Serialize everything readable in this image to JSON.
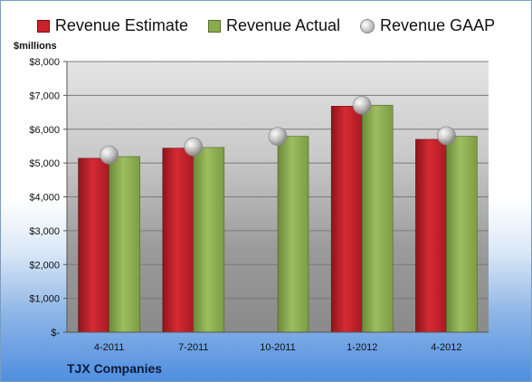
{
  "legend": {
    "estimate": "Revenue Estimate",
    "actual": "Revenue Actual",
    "gaap": "Revenue GAAP"
  },
  "unit_label": "$millions",
  "company": "TJX Companies",
  "colors": {
    "estimate": "#c8232b",
    "actual": "#8aac4e",
    "gaap": "#c0c0c0"
  },
  "chart_data": {
    "type": "bar",
    "title": "",
    "xlabel": "",
    "ylabel": "$millions",
    "categories": [
      "4-2011",
      "7-2011",
      "10-2011",
      "1-2012",
      "4-2012"
    ],
    "ylim": [
      0,
      8000
    ],
    "yticks": [
      {
        "value": 0,
        "label": "$-"
      },
      {
        "value": 1000,
        "label": "$1,000"
      },
      {
        "value": 2000,
        "label": "$2,000"
      },
      {
        "value": 3000,
        "label": "$3,000"
      },
      {
        "value": 4000,
        "label": "$4,000"
      },
      {
        "value": 5000,
        "label": "$5,000"
      },
      {
        "value": 6000,
        "label": "$6,000"
      },
      {
        "value": 7000,
        "label": "$7,000"
      },
      {
        "value": 8000,
        "label": "$8,000"
      }
    ],
    "grid": true,
    "legend_position": "top",
    "series": [
      {
        "name": "Revenue Estimate",
        "type": "bar",
        "values": [
          5140,
          5440,
          null,
          6680,
          5700
        ]
      },
      {
        "name": "Revenue Actual",
        "type": "bar",
        "values": [
          5190,
          5460,
          5790,
          6710,
          5790
        ]
      },
      {
        "name": "Revenue GAAP",
        "type": "scatter",
        "values": [
          5240,
          5480,
          5790,
          6710,
          5810
        ]
      }
    ]
  }
}
